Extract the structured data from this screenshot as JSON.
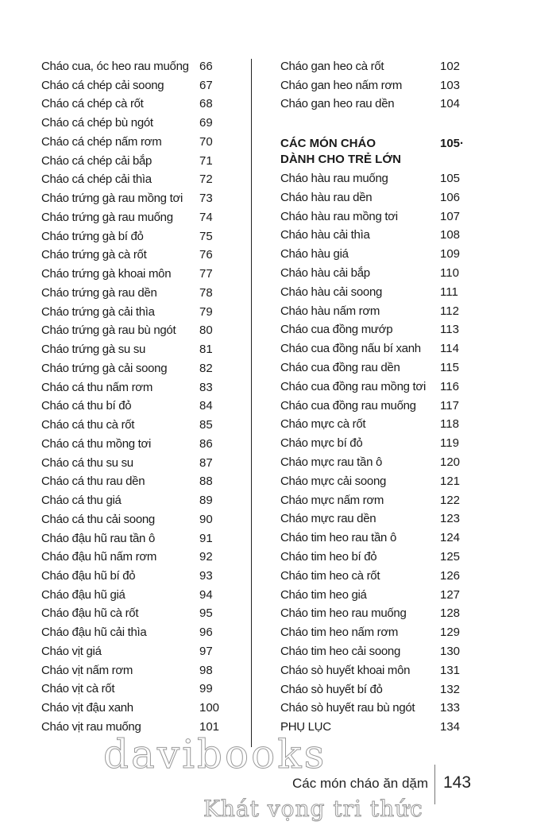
{
  "left_column": [
    {
      "title": "Cháo cua, óc heo rau muống",
      "page": "66"
    },
    {
      "title": "Cháo cá chép cải soong",
      "page": "67"
    },
    {
      "title": "Cháo cá chép cà rốt",
      "page": "68"
    },
    {
      "title": "Cháo cá chép bù ngót",
      "page": "69"
    },
    {
      "title": "Cháo cá chép nấm rơm",
      "page": "70"
    },
    {
      "title": "Cháo cá chép cải bắp",
      "page": "71"
    },
    {
      "title": "Cháo cá chép cải thìa",
      "page": "72"
    },
    {
      "title": "Cháo trứng gà rau mồng tơi",
      "page": "73"
    },
    {
      "title": "Cháo trứng gà rau muống",
      "page": "74"
    },
    {
      "title": "Cháo trứng gà bí đỏ",
      "page": "75"
    },
    {
      "title": "Cháo trứng gà cà rốt",
      "page": "76"
    },
    {
      "title": "Cháo trứng gà khoai môn",
      "page": "77"
    },
    {
      "title": "Cháo trứng gà rau dền",
      "page": "78"
    },
    {
      "title": "Cháo trứng gà cải thìa",
      "page": "79"
    },
    {
      "title": "Cháo trứng gà rau bù ngót",
      "page": "80"
    },
    {
      "title": "Cháo trứng gà su su",
      "page": "81"
    },
    {
      "title": "Cháo trứng gà cải soong",
      "page": "82"
    },
    {
      "title": "Cháo cá thu nấm rơm",
      "page": "83"
    },
    {
      "title": "Cháo cá thu bí đỏ",
      "page": "84"
    },
    {
      "title": "Cháo cá thu cà rốt",
      "page": "85"
    },
    {
      "title": "Cháo cá thu mồng tơi",
      "page": "86"
    },
    {
      "title": "Cháo cá thu su su",
      "page": "87"
    },
    {
      "title": "Cháo cá thu rau dền",
      "page": "88"
    },
    {
      "title": "Cháo cá thu giá",
      "page": "89"
    },
    {
      "title": "Cháo cá thu cải soong",
      "page": "90"
    },
    {
      "title": "Cháo đậu hũ rau tần ô",
      "page": "91"
    },
    {
      "title": "Cháo đậu hũ nấm rơm",
      "page": "92"
    },
    {
      "title": "Cháo đậu hũ bí đỏ",
      "page": "93"
    },
    {
      "title": "Cháo đậu hũ giá",
      "page": "94"
    },
    {
      "title": "Cháo đậu hũ cà rốt",
      "page": "95"
    },
    {
      "title": "Cháo đậu hũ cải thìa",
      "page": "96"
    },
    {
      "title": "Cháo vịt giá",
      "page": "97"
    },
    {
      "title": "Cháo vịt nấm rơm",
      "page": "98"
    },
    {
      "title": "Cháo vịt cà rốt",
      "page": "99"
    },
    {
      "title": "Cháo vịt đậu xanh",
      "page": "100"
    },
    {
      "title": "Cháo vịt rau muống",
      "page": "101"
    }
  ],
  "right_column_top": [
    {
      "title": "Cháo gan heo cà rốt",
      "page": "102"
    },
    {
      "title": "Cháo gan heo nấm rơm",
      "page": "103"
    },
    {
      "title": "Cháo gan heo rau dền",
      "page": "104"
    }
  ],
  "section_heading": {
    "line1": "CÁC MÓN CHÁO",
    "line2": "DÀNH CHO TRẺ LỚN",
    "page": "105·"
  },
  "right_column": [
    {
      "title": "Cháo hàu rau muống",
      "page": "105"
    },
    {
      "title": "Cháo hàu rau dền",
      "page": "106"
    },
    {
      "title": "Cháo hàu rau mồng tơi",
      "page": "107"
    },
    {
      "title": "Cháo hàu cải thìa",
      "page": "108"
    },
    {
      "title": "Cháo hàu giá",
      "page": "109"
    },
    {
      "title": "Cháo hàu cải bắp",
      "page": "110"
    },
    {
      "title": "Cháo hàu cải soong",
      "page": "111"
    },
    {
      "title": "Cháo hàu nấm rơm",
      "page": "112"
    },
    {
      "title": "Cháo cua đồng mướp",
      "page": "113"
    },
    {
      "title": "Cháo cua đồng nấu bí xanh",
      "page": "114"
    },
    {
      "title": "Cháo cua đồng rau dền",
      "page": "115"
    },
    {
      "title": "Cháo cua đồng rau mồng tơi",
      "page": "116"
    },
    {
      "title": "Cháo cua đồng rau muống",
      "page": "117"
    },
    {
      "title": "Cháo mực cà rốt",
      "page": "118"
    },
    {
      "title": "Cháo mực bí đỏ",
      "page": "119"
    },
    {
      "title": "Cháo mực rau tần ô",
      "page": "120"
    },
    {
      "title": "Cháo mực cải soong",
      "page": "121"
    },
    {
      "title": "Cháo mực nấm rơm",
      "page": "122"
    },
    {
      "title": "Cháo mực rau dền",
      "page": "123"
    },
    {
      "title": "Cháo tim heo rau tần ô",
      "page": "124"
    },
    {
      "title": "Cháo tim heo bí đỏ",
      "page": "125"
    },
    {
      "title": "Cháo tim heo cà rốt",
      "page": "126"
    },
    {
      "title": "Cháo tim heo giá",
      "page": "127"
    },
    {
      "title": "Cháo tim heo rau muống",
      "page": "128"
    },
    {
      "title": "Cháo tim heo nấm rơm",
      "page": "129"
    },
    {
      "title": "Cháo tim heo cải soong",
      "page": "130"
    },
    {
      "title": "Cháo sò huyết khoai môn",
      "page": "131"
    },
    {
      "title": "Cháo sò huyết bí đỏ",
      "page": "132"
    },
    {
      "title": "Cháo sò huyết rau bù ngót",
      "page": "133"
    },
    {
      "title": "PHỤ LỤC",
      "page": "134"
    }
  ],
  "footer": {
    "book_title": "Các món cháo ăn dặm",
    "page_number": "143"
  },
  "watermark": {
    "brand": "davibooks",
    "slogan": "Khát vọng tri thức"
  }
}
